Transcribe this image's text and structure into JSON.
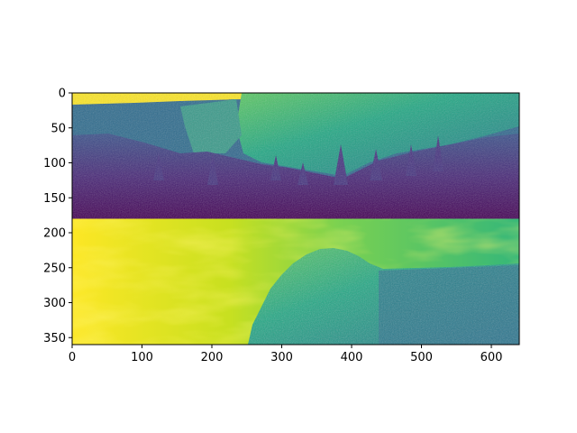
{
  "figure": {
    "image_description_kind": "matplotlib imshow of two stacked grayscale photos rendered with viridis colormap",
    "colormap": "viridis",
    "colors": {
      "viridis_dark": "#440154",
      "viridis_blue": "#31688e",
      "viridis_teal": "#21918c",
      "viridis_green": "#35b779",
      "viridis_yellow": "#fde725"
    }
  },
  "axes": {
    "x_ticks": [
      0,
      100,
      200,
      300,
      400,
      500,
      600
    ],
    "y_ticks": [
      0,
      50,
      100,
      150,
      200,
      250,
      300,
      350
    ],
    "xlim": [
      0,
      640
    ],
    "ylim": [
      360,
      0
    ]
  },
  "panels": [
    {
      "name": "top-photo",
      "y_range": [
        0,
        180
      ]
    },
    {
      "name": "bottom-photo",
      "y_range": [
        180,
        360
      ]
    }
  ]
}
